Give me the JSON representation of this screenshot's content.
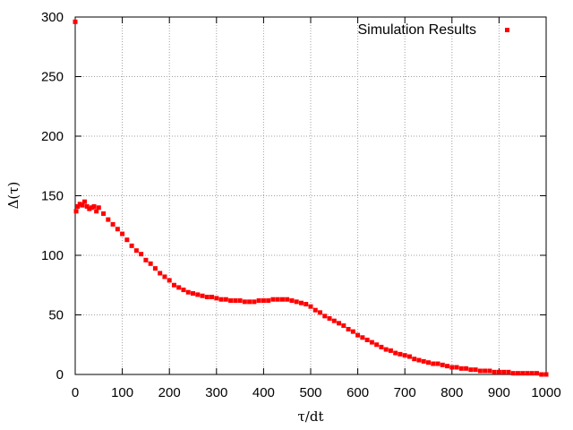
{
  "chart_data": {
    "type": "scatter",
    "title": "",
    "xlabel": "τ/dt",
    "ylabel": "Δ(τ)",
    "xlim": [
      0,
      1000
    ],
    "ylim": [
      0,
      300
    ],
    "xticks": [
      "0",
      "100",
      "200",
      "300",
      "400",
      "500",
      "600",
      "700",
      "800",
      "900",
      "1000"
    ],
    "yticks": [
      "0",
      "50",
      "100",
      "150",
      "200",
      "250",
      "300"
    ],
    "grid": true,
    "legend_position": "top-right",
    "marker_color": "#ff0000",
    "series": [
      {
        "name": "Simulation Results",
        "x": [
          0,
          2,
          5,
          10,
          15,
          20,
          25,
          30,
          35,
          40,
          45,
          50,
          60,
          70,
          80,
          90,
          100,
          110,
          120,
          130,
          140,
          150,
          160,
          170,
          180,
          190,
          200,
          210,
          220,
          230,
          240,
          250,
          260,
          270,
          280,
          290,
          300,
          310,
          320,
          330,
          340,
          350,
          360,
          370,
          380,
          390,
          400,
          410,
          420,
          430,
          440,
          450,
          460,
          470,
          480,
          490,
          500,
          510,
          520,
          530,
          540,
          550,
          560,
          570,
          580,
          590,
          600,
          610,
          620,
          630,
          640,
          650,
          660,
          670,
          680,
          690,
          700,
          710,
          720,
          730,
          740,
          750,
          760,
          770,
          780,
          790,
          800,
          810,
          820,
          830,
          840,
          850,
          860,
          870,
          880,
          890,
          900,
          910,
          920,
          930,
          940,
          950,
          960,
          970,
          980,
          990,
          1000
        ],
        "y": [
          296,
          137,
          141,
          143,
          142,
          145,
          141,
          139,
          140,
          141,
          137,
          140,
          135,
          130,
          126,
          122,
          118,
          113,
          108,
          104,
          101,
          96,
          93,
          89,
          85,
          82,
          79,
          75,
          73,
          71,
          69,
          68,
          67,
          66,
          65,
          65,
          64,
          63,
          63,
          62,
          62,
          62,
          61,
          61,
          61,
          62,
          62,
          62,
          63,
          63,
          63,
          63,
          62,
          61,
          60,
          59,
          57,
          54,
          52,
          49,
          47,
          45,
          43,
          41,
          38,
          36,
          33,
          31,
          29,
          27,
          25,
          23,
          21,
          20,
          18,
          17,
          16,
          15,
          13,
          12,
          11,
          10,
          9,
          9,
          8,
          7,
          6,
          6,
          5,
          5,
          4,
          4,
          3,
          3,
          3,
          2,
          2,
          2,
          2,
          1,
          1,
          1,
          1,
          1,
          1,
          0,
          0
        ]
      }
    ]
  }
}
